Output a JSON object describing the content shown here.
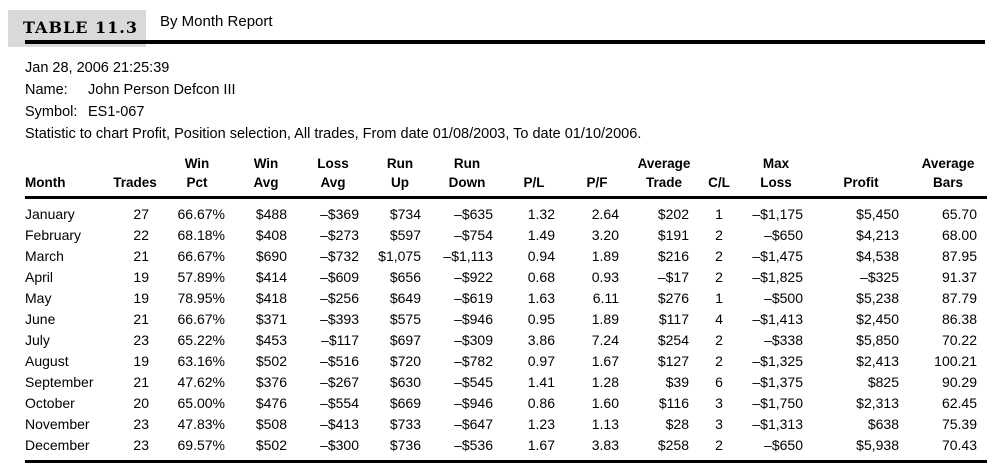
{
  "title": {
    "label": "TABLE 11.3",
    "subtitle": "By Month Report"
  },
  "meta": {
    "datetime": "Jan 28, 2006 21:25:39",
    "name_label": "Name:",
    "name_value": "John Person Defcon III",
    "symbol_label": "Symbol:",
    "symbol_value": "ES1-067",
    "statistic_line": "Statistic to chart Profit, Position selection, All trades, From date 01/08/2003, To date 01/10/2006."
  },
  "table": {
    "columns": [
      {
        "top": "",
        "bottom": "Month"
      },
      {
        "top": "",
        "bottom": "Trades"
      },
      {
        "top": "Win",
        "bottom": "Pct"
      },
      {
        "top": "Win",
        "bottom": "Avg"
      },
      {
        "top": "Loss",
        "bottom": "Avg"
      },
      {
        "top": "Run",
        "bottom": "Up"
      },
      {
        "top": "Run",
        "bottom": "Down"
      },
      {
        "top": "",
        "bottom": "P/L"
      },
      {
        "top": "",
        "bottom": "P/F"
      },
      {
        "top": "Average",
        "bottom": "Trade"
      },
      {
        "top": "",
        "bottom": "C/L"
      },
      {
        "top": "Max",
        "bottom": "Loss"
      },
      {
        "top": "",
        "bottom": "Profit"
      },
      {
        "top": "Average",
        "bottom": "Bars"
      }
    ],
    "rows": [
      [
        "January",
        "27",
        "66.67%",
        "$488",
        "–$369",
        "$734",
        "–$635",
        "1.32",
        "2.64",
        "$202",
        "1",
        "–$1,175",
        "$5,450",
        "65.70"
      ],
      [
        "February",
        "22",
        "68.18%",
        "$408",
        "–$273",
        "$597",
        "–$754",
        "1.49",
        "3.20",
        "$191",
        "2",
        "–$650",
        "$4,213",
        "68.00"
      ],
      [
        "March",
        "21",
        "66.67%",
        "$690",
        "–$732",
        "$1,075",
        "–$1,113",
        "0.94",
        "1.89",
        "$216",
        "2",
        "–$1,475",
        "$4,538",
        "87.95"
      ],
      [
        "April",
        "19",
        "57.89%",
        "$414",
        "–$609",
        "$656",
        "–$922",
        "0.68",
        "0.93",
        "–$17",
        "2",
        "–$1,825",
        "–$325",
        "91.37"
      ],
      [
        "May",
        "19",
        "78.95%",
        "$418",
        "–$256",
        "$649",
        "–$619",
        "1.63",
        "6.11",
        "$276",
        "1",
        "–$500",
        "$5,238",
        "87.79"
      ],
      [
        "June",
        "21",
        "66.67%",
        "$371",
        "–$393",
        "$575",
        "–$946",
        "0.95",
        "1.89",
        "$117",
        "4",
        "–$1,413",
        "$2,450",
        "86.38"
      ],
      [
        "July",
        "23",
        "65.22%",
        "$453",
        "–$117",
        "$697",
        "–$309",
        "3.86",
        "7.24",
        "$254",
        "2",
        "–$338",
        "$5,850",
        "70.22"
      ],
      [
        "August",
        "19",
        "63.16%",
        "$502",
        "–$516",
        "$720",
        "–$782",
        "0.97",
        "1.67",
        "$127",
        "2",
        "–$1,325",
        "$2,413",
        "100.21"
      ],
      [
        "September",
        "21",
        "47.62%",
        "$376",
        "–$267",
        "$630",
        "–$545",
        "1.41",
        "1.28",
        "$39",
        "6",
        "–$1,375",
        "$825",
        "90.29"
      ],
      [
        "October",
        "20",
        "65.00%",
        "$476",
        "–$554",
        "$669",
        "–$946",
        "0.86",
        "1.60",
        "$116",
        "3",
        "–$1,750",
        "$2,313",
        "62.45"
      ],
      [
        "November",
        "23",
        "47.83%",
        "$508",
        "–$413",
        "$733",
        "–$647",
        "1.23",
        "1.13",
        "$28",
        "3",
        "–$1,313",
        "$638",
        "75.39"
      ],
      [
        "December",
        "23",
        "69.57%",
        "$502",
        "–$300",
        "$736",
        "–$536",
        "1.67",
        "3.83",
        "$258",
        "2",
        "–$650",
        "$5,938",
        "70.43"
      ]
    ]
  },
  "colors": {
    "background": "#ffffff",
    "text": "#000000",
    "title_box_bg": "#d9d9d9",
    "rule": "#000000"
  }
}
